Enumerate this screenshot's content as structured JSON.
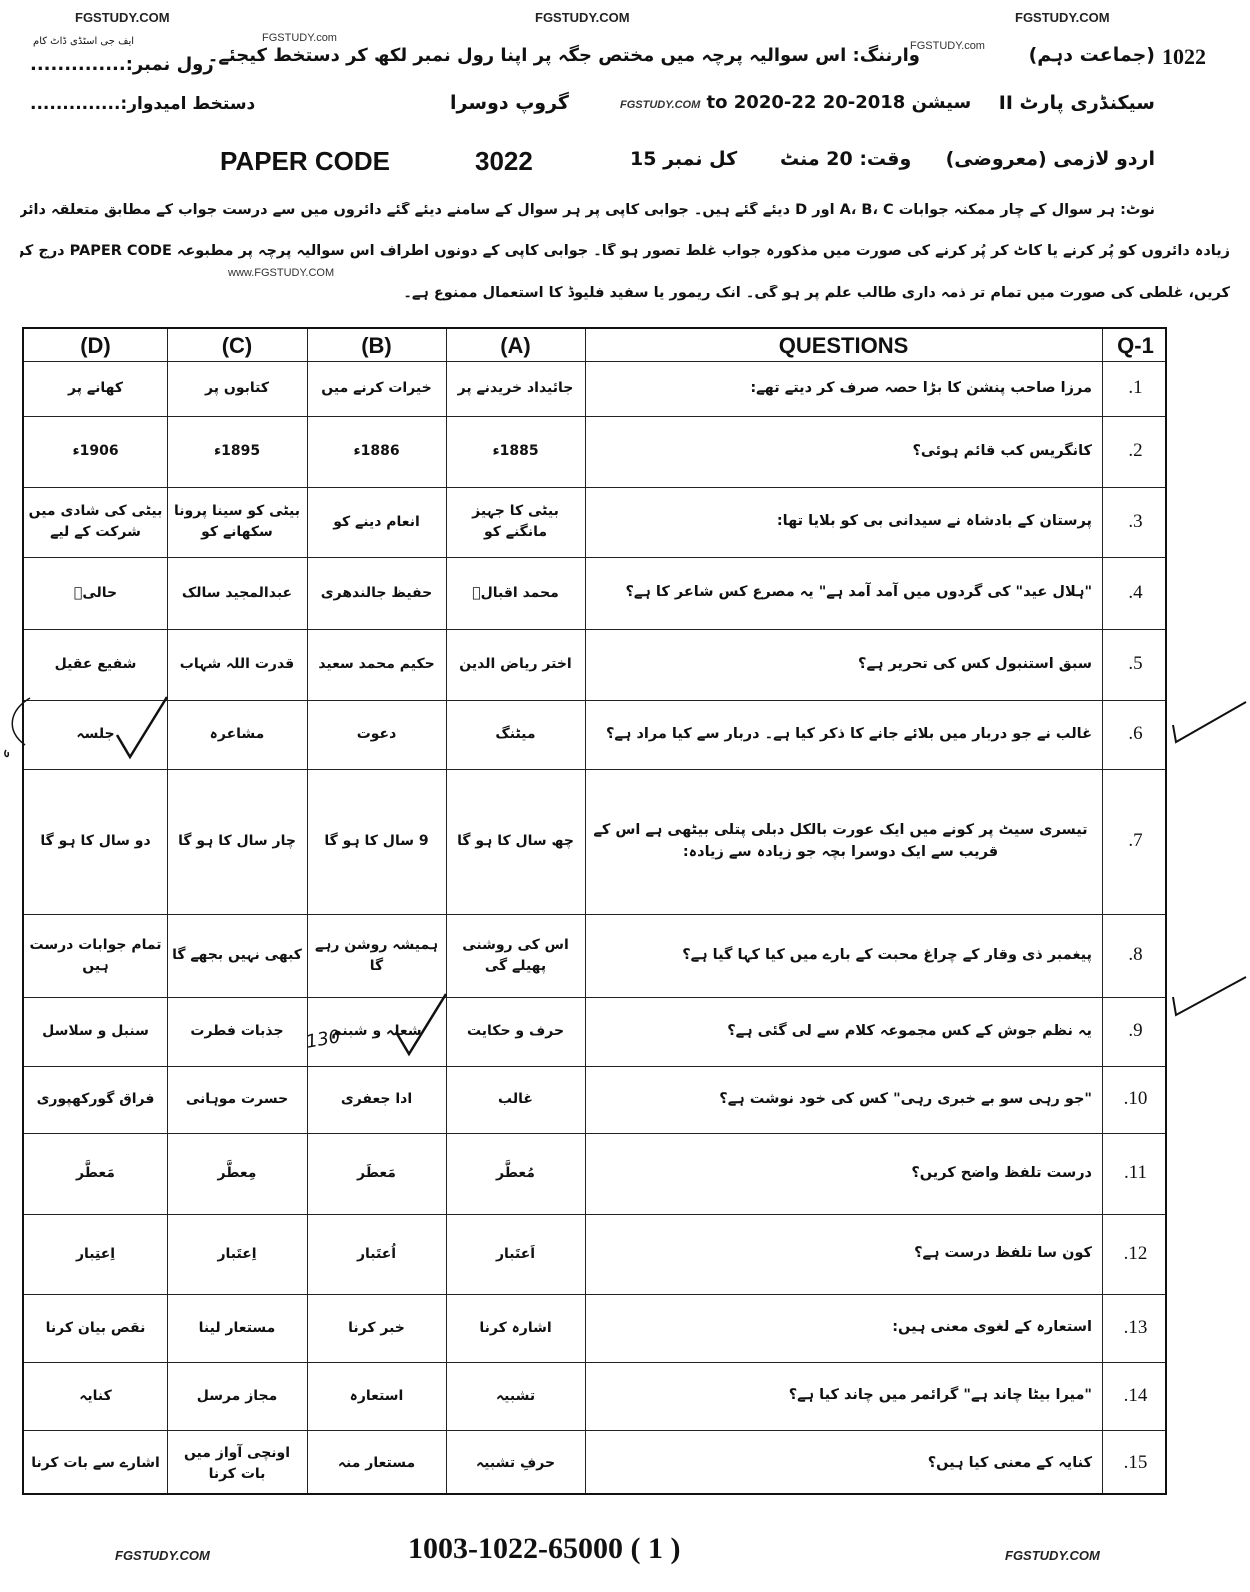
{
  "watermarks": {
    "site": "FGSTUDY.COM",
    "site_lower": "FGSTUDY.com",
    "site_www": "www.FGSTUDY.COM",
    "urdu_site": "ایف جی اسٹڈی ڈاٹ کام"
  },
  "header": {
    "class_code": "1022",
    "class_label": "(جماعت دہم)",
    "warning": "وارننگ: اس سوالیہ پرچہ میں مختص جگہ پر اپنا رول نمبر لکھ کر دستخط کیجئے۔",
    "roll_no": "رول نمبر:..............",
    "level": "سیکنڈری پارٹ II",
    "session": "سیشن 2018-20 to 2020-22",
    "group": "گروپ دوسرا",
    "candidate_signature": "دستخط امیدوار:..............",
    "subject": "اردو لازمی (معروضی)",
    "time": "وقت: 20 منٹ",
    "total_marks": "کل نمبر 15",
    "paper_code_label": "PAPER CODE",
    "paper_code": "3022"
  },
  "note": [
    "نوٹ: ہر سوال کے چار ممکنہ جوابات A، B، C اور D دیئے گئے ہیں۔ جوابی کاپی پر ہر سوال کے سامنے دیئے گئے دائروں میں سے درست جواب کے مطابق متعلقہ دائرہ کو مارکر یا پین سے بھر دیجئے۔ ایک سے",
    "زیادہ دائروں کو پُر کرنے یا کاٹ کر پُر کرنے کی صورت میں مذکورہ جواب غلط تصور ہو گا۔ جوابی کاپی کے دونوں اطراف اس سوالیہ پرچہ پر مطبوعہ PAPER CODE درج کرکے اس کے مطابق دائرے پُر",
    "کریں، غلطی کی صورت میں تمام تر ذمہ داری طالب علم پر ہو گی۔ انک ریمور یا سفید فلیوڈ کا استعمال ممنوع ہے۔"
  ],
  "table": {
    "headers": {
      "d": "(D)",
      "c": "(C)",
      "b": "(B)",
      "a": "(A)",
      "question": "QUESTIONS",
      "number": "Q-1"
    },
    "rows": [
      {
        "n": ".1",
        "q": "مرزا صاحب پنشن کا بڑا حصہ صرف کر دیتے تھے:",
        "a": "جائیداد خریدنے پر",
        "b": "خیرات کرنے میں",
        "c": "کتابوں پر",
        "d": "کھانے پر"
      },
      {
        "n": ".2",
        "q": "کانگریس کب قائم ہوئی؟",
        "a": "1885ء",
        "b": "1886ء",
        "c": "1895ء",
        "d": "1906ء"
      },
      {
        "n": ".3",
        "q": "پرستان کے بادشاہ نے سیدانی بی کو بلایا تھا:",
        "a": "بیٹی کا جہیز مانگنے کو",
        "b": "انعام دینے کو",
        "c": "بیٹی کو سینا پرونا سکھانے کو",
        "d": "بیٹی کی شادی میں شرکت کے لیے"
      },
      {
        "n": ".4",
        "q": "\"ہلال عید\" کی گردوں میں آمد آمد ہے\" یہ مصرع کس شاعر کا ہے؟",
        "a": "محمد اقبالؔ",
        "b": "حفیظ جالندھری",
        "c": "عبدالمجید سالک",
        "d": "حالیؔ"
      },
      {
        "n": ".5",
        "q": "سبق استنبول کس کی تحریر ہے؟",
        "a": "اختر ریاض الدین",
        "b": "حکیم محمد سعید",
        "c": "قدرت اللہ شہاب",
        "d": "شفیع عقیل"
      },
      {
        "n": ".6",
        "q": "غالب نے جو دربار میں بلائے جانے کا ذکر کیا ہے۔ دربار سے کیا مراد ہے؟",
        "a": "میٹنگ",
        "b": "دعوت",
        "c": "مشاعرہ",
        "d": "جلسہ"
      },
      {
        "n": ".7",
        "q": "تیسری سیٹ پر کونے میں ایک عورت بالکل دبلی پتلی بیٹھی ہے اس کے قریب سے ایک دوسرا بچہ جو زیادہ سے زیادہ:",
        "a": "چھ سال کا ہو گا",
        "b": "9 سال کا ہو گا",
        "c": "چار سال کا ہو گا",
        "d": "دو سال کا ہو گا"
      },
      {
        "n": ".8",
        "q": "پیغمبر ذی وقار کے چراغ محبت کے بارے میں کیا کہا گیا ہے؟",
        "a": "اس کی روشنی پھیلے گی",
        "b": "ہمیشہ روشن رہے گا",
        "c": "کبھی نہیں بجھے گا",
        "d": "تمام جوابات درست ہیں"
      },
      {
        "n": ".9",
        "q": "یہ نظم جوش کے کس مجموعہ کلام سے لی گئی ہے؟",
        "a": "حرف و حکایت",
        "b": "شعلہ و شبنم",
        "c": "جذبات فطرت",
        "d": "سنبل و سلاسل"
      },
      {
        "n": ".10",
        "q": "\"جو رہی سو بے خبری رہی\" کس کی خود نوشت ہے؟",
        "a": "غالب",
        "b": "ادا جعفری",
        "c": "حسرت موہانی",
        "d": "فراق گورکھپوری"
      },
      {
        "n": ".11",
        "q": "درست تلفظ واضح کریں؟",
        "a": "مُعطَّر",
        "b": "مَعطَر",
        "c": "مِعطَّر",
        "d": "مَعطَّر"
      },
      {
        "n": ".12",
        "q": "کون سا تلفظ درست ہے؟",
        "a": "اَعتَبار",
        "b": "اُعتَبار",
        "c": "اِعتَبار",
        "d": "اِعتِبار"
      },
      {
        "n": ".13",
        "q": "استعارہ کے لغوی معنی ہیں:",
        "a": "اشارہ کرنا",
        "b": "خبر کرنا",
        "c": "مستعار لینا",
        "d": "نقص بیان کرنا"
      },
      {
        "n": ".14",
        "q": "\"میرا بیٹا چاند ہے\" گرائمر میں چاند کیا ہے؟",
        "a": "تشبیہ",
        "b": "استعارہ",
        "c": "مجاز مرسل",
        "d": "کنایہ"
      },
      {
        "n": ".15",
        "q": "کنایہ کے معنی کیا ہیں؟",
        "a": "حرفِ تشبیہ",
        "b": "مستعار منہ",
        "c": "اونچی آواز میں بات کرنا",
        "d": "اشارے سے بات کرنا"
      }
    ],
    "checked": [
      {
        "row": 6,
        "option": "d"
      },
      {
        "row": 9,
        "option": "b"
      }
    ]
  },
  "handwritten_mark": "130",
  "footer": {
    "code": "1003-1022-65000 ( 1 )"
  }
}
